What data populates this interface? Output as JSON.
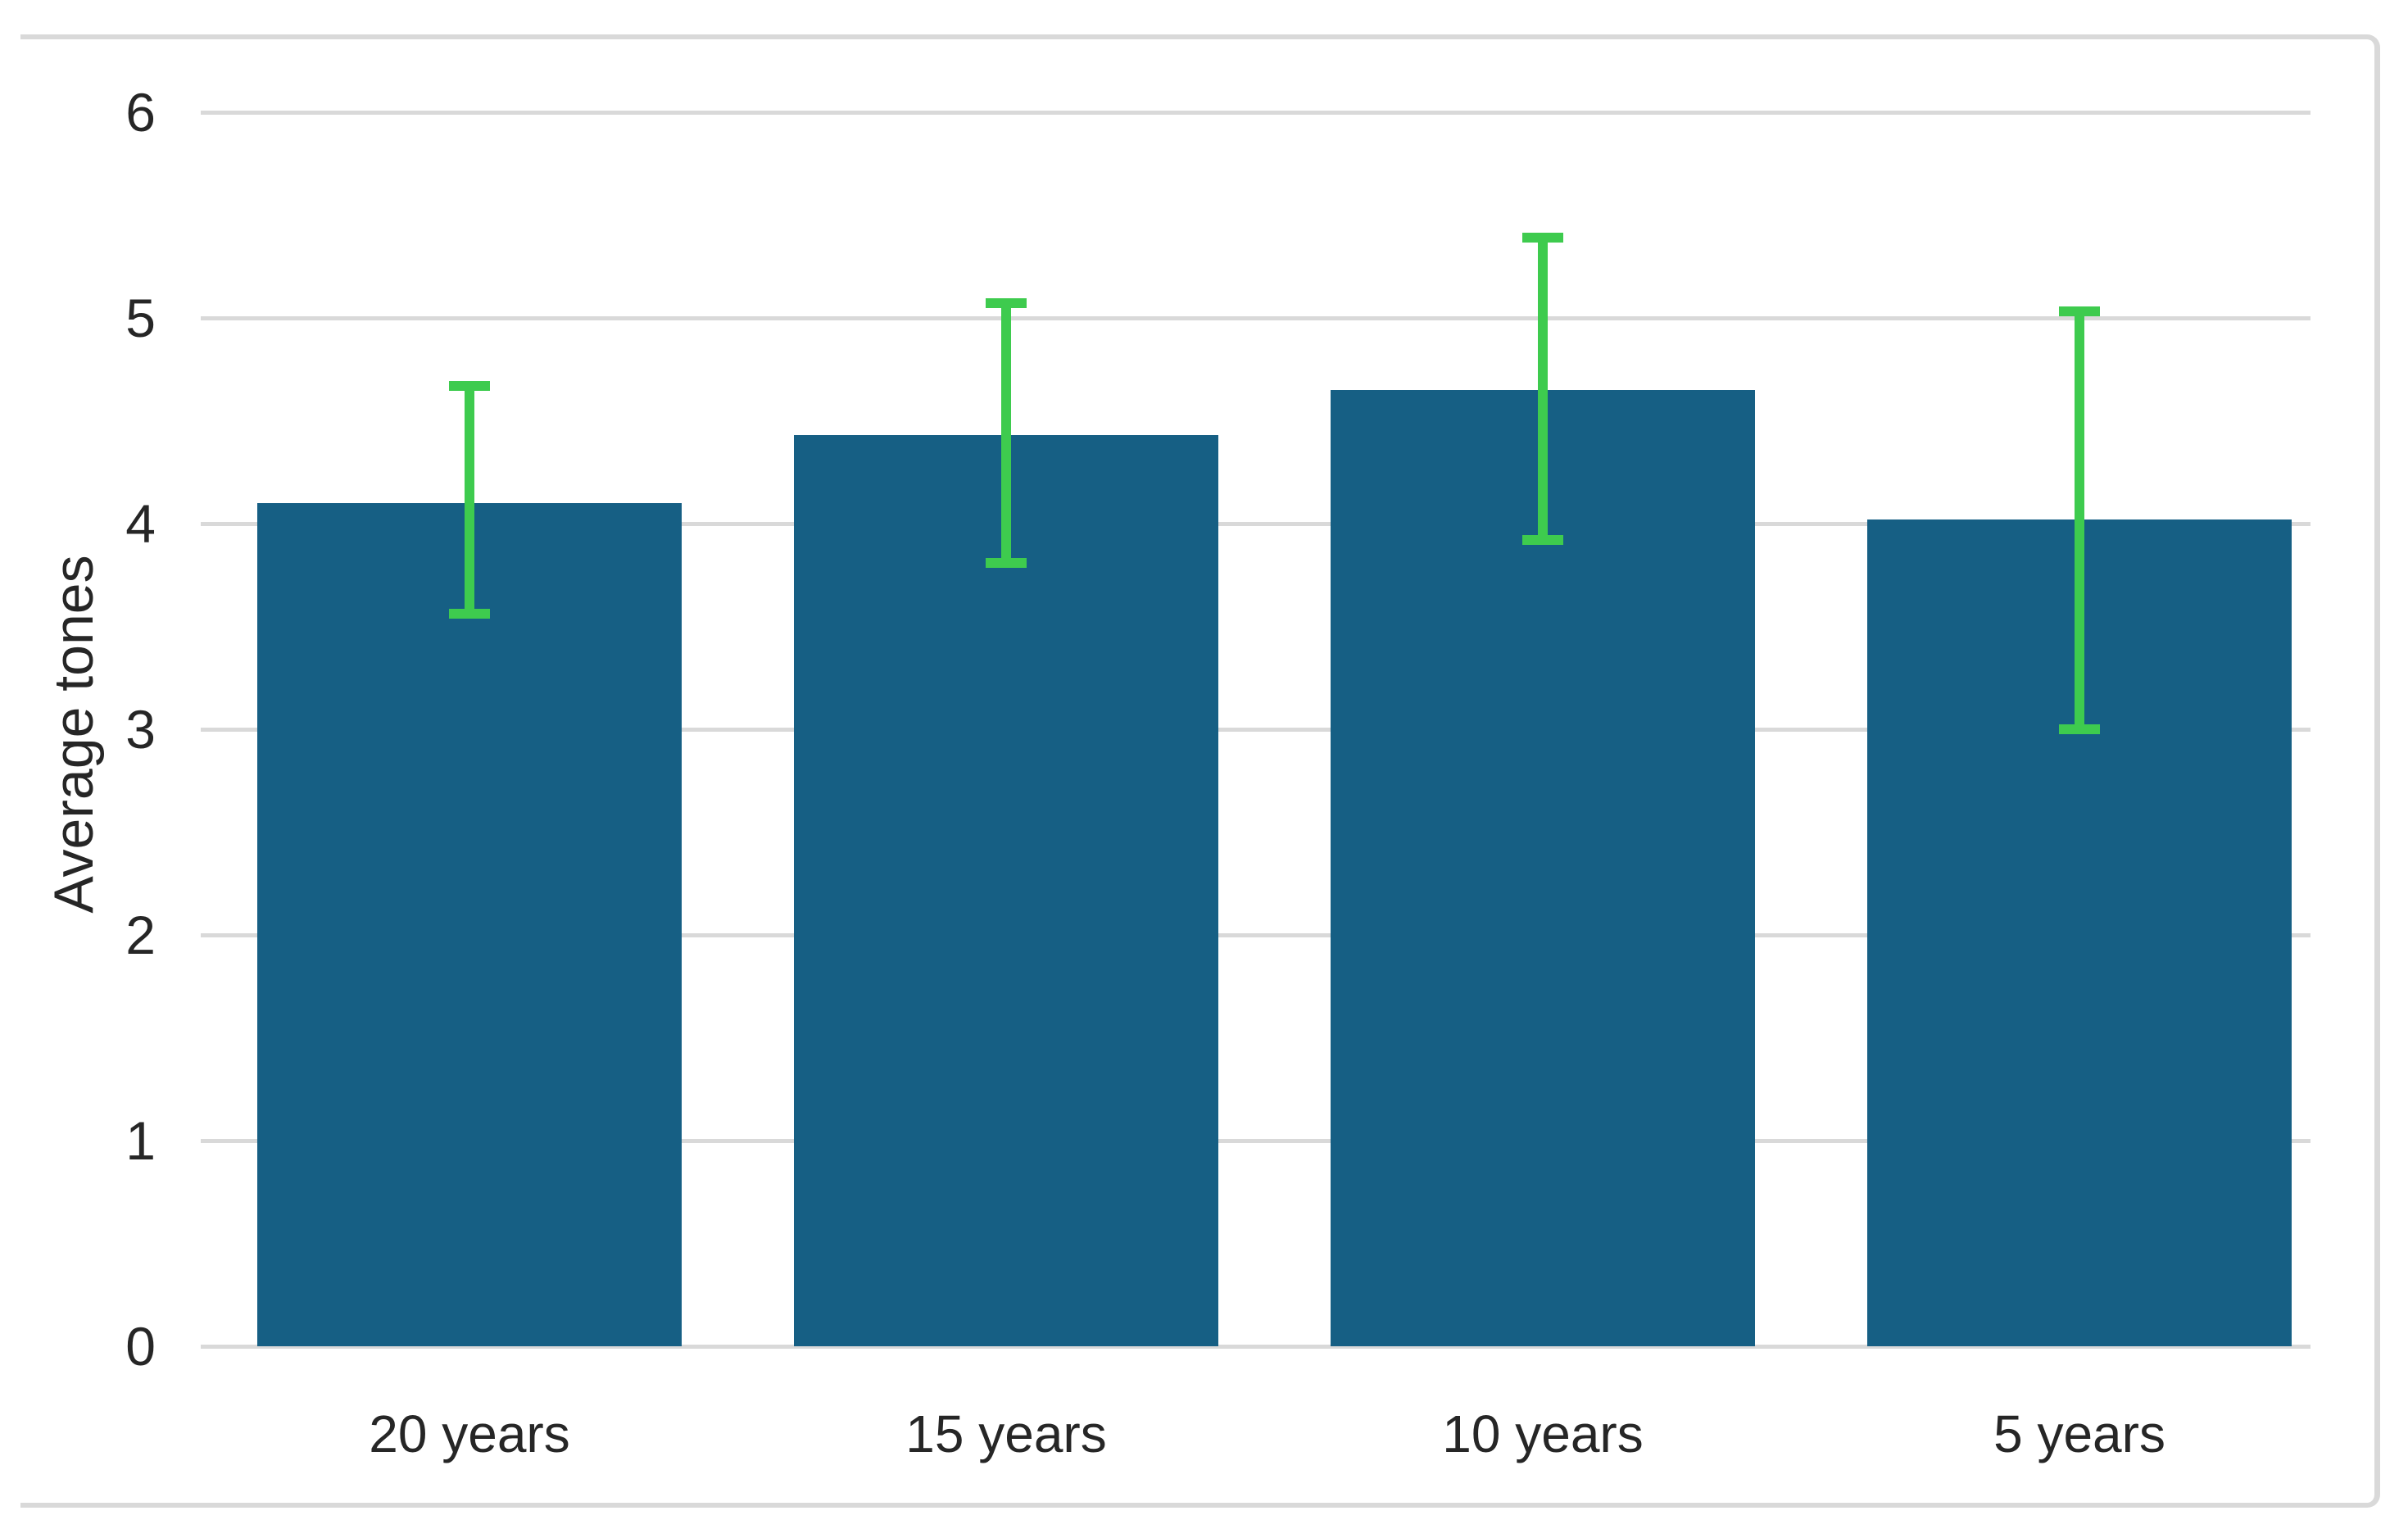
{
  "chart_data": {
    "type": "bar",
    "title": "",
    "xlabel": "",
    "ylabel": "Average tones",
    "categories": [
      "20 years",
      "15 years",
      "10 years",
      "5 years"
    ],
    "values": [
      4.1,
      4.43,
      4.65,
      4.02
    ],
    "error_bars": {
      "upper": [
        4.67,
        5.07,
        5.39,
        5.03
      ],
      "lower": [
        3.56,
        3.81,
        3.92,
        3.0
      ]
    },
    "ylim": [
      0,
      6
    ],
    "yticks": [
      0,
      1,
      2,
      3,
      4,
      5,
      6
    ],
    "grid": true,
    "legend_position": "none",
    "bar_color": "#165f84",
    "error_bar_color": "#3ecb4e",
    "grid_color": "#d9d9d9",
    "border_color": "#d9d9d9",
    "text_color": "#262626"
  }
}
